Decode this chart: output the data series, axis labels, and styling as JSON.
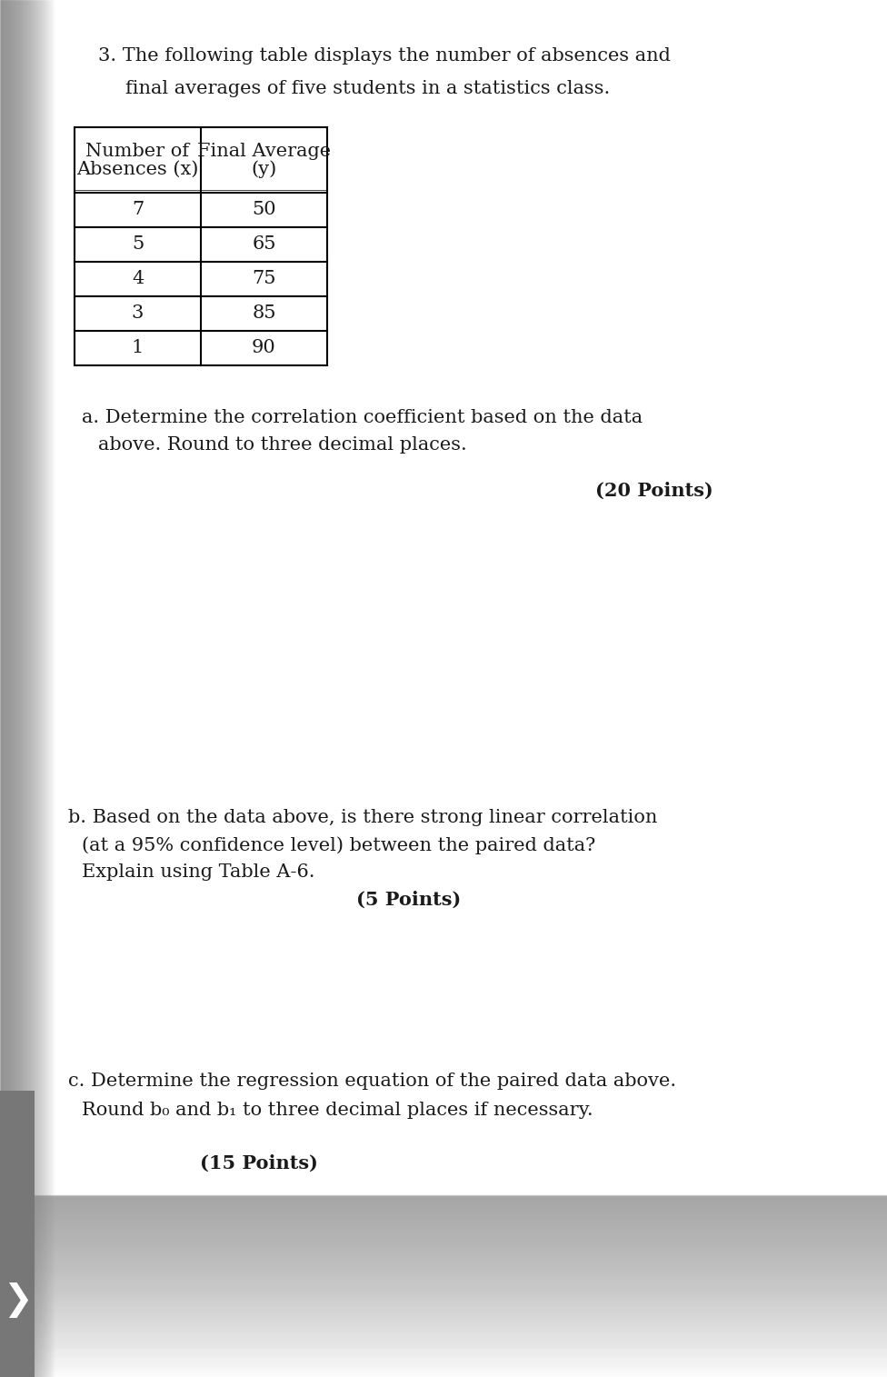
{
  "page_bg": "#ffffff",
  "sidebar_color": "#888888",
  "question_number": "3.",
  "intro_text_line1": "The following table displays the number of absences and",
  "intro_text_line2": "final averages of five students in a statistics class.",
  "table_header_col1_line1": "Number of",
  "table_header_col1_line2": "Absences (x)",
  "table_header_col2_line1": "Final Average",
  "table_header_col2_line2": "(y)",
  "table_data": [
    [
      7,
      50
    ],
    [
      5,
      65
    ],
    [
      4,
      75
    ],
    [
      3,
      85
    ],
    [
      1,
      90
    ]
  ],
  "part_a_line1": "a. Determine the correlation coefficient based on the data",
  "part_a_line2": "above. Round to three decimal places.",
  "part_a_points": "(20 Points)",
  "part_b_line1": "b. Based on the data above, is there strong linear correlation",
  "part_b_line2": "(at a 95% confidence level) between the paired data?",
  "part_b_line3": "Explain using Table A-6.",
  "part_b_points": "(5 Points)",
  "part_c_line1": "c. Determine the regression equation of the paired data above.",
  "part_c_line2_pre": "Round b",
  "part_c_line2_sub0": "0",
  "part_c_line2_mid": " and b",
  "part_c_line2_sub1": "1",
  "part_c_line2_post": " to three decimal places if necessary.",
  "part_c_points": "(15 Points)",
  "arrow_symbol": "❯",
  "font_size_main": 15,
  "font_size_table": 15,
  "font_color": "#1a1a1a"
}
